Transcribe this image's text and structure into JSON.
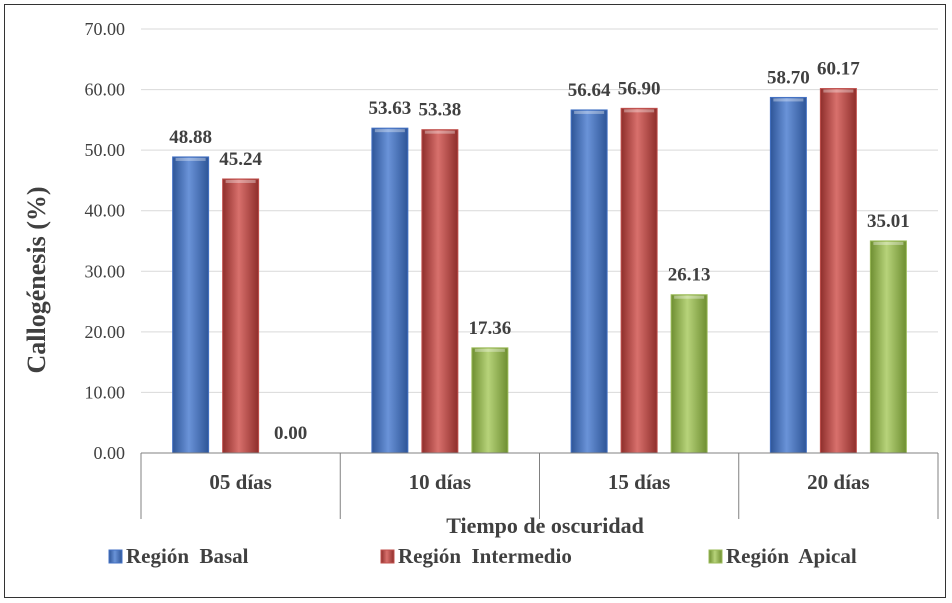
{
  "chart_data": {
    "type": "bar",
    "categories": [
      "05 días",
      "10 días",
      "15 días",
      "20 días"
    ],
    "series": [
      {
        "name": "Región  Basal",
        "values": [
          48.88,
          53.63,
          56.64,
          58.7
        ],
        "color": "#4472C4"
      },
      {
        "name": "Región  Intermedio",
        "values": [
          45.24,
          53.38,
          56.9,
          60.17
        ],
        "color": "#C0504D"
      },
      {
        "name": "Región  Apical",
        "values": [
          0.0,
          17.36,
          26.13,
          35.01
        ],
        "color": "#9BBB59"
      }
    ],
    "value_labels": [
      [
        "48.88",
        "53.63",
        "56.64",
        "58.70"
      ],
      [
        "45.24",
        "53.38",
        "56.90",
        "60.17"
      ],
      [
        "0.00",
        "17.36",
        "26.13",
        "35.01"
      ]
    ],
    "y_ticks": [
      "0.00",
      "10.00",
      "20.00",
      "30.00",
      "40.00",
      "50.00",
      "60.00",
      "70.00"
    ],
    "ylim": [
      0,
      70
    ],
    "xlabel": "Tiempo de oscuridad",
    "ylabel": "Callogénesis (%)",
    "grid": true,
    "legend_position": "bottom"
  }
}
